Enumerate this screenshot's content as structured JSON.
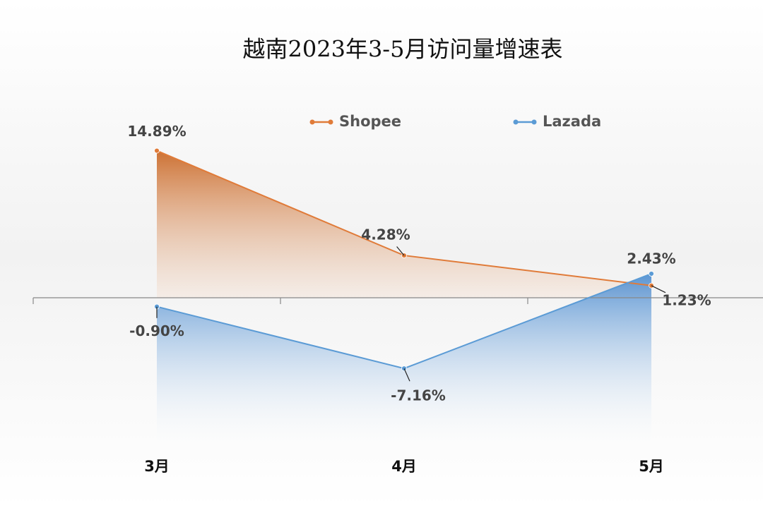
{
  "chart_data": {
    "type": "line",
    "title": "越南2023年3-5月访问量增速表",
    "categories": [
      "3月",
      "4月",
      "5月"
    ],
    "series": [
      {
        "name": "Shopee",
        "color": "#e07b39",
        "values": [
          14.89,
          4.28,
          1.23
        ],
        "value_labels": [
          "14.89%",
          "4.28%",
          "1.23%"
        ]
      },
      {
        "name": "Lazada",
        "color": "#5b9bd5",
        "values": [
          -0.9,
          -7.16,
          2.43
        ],
        "value_labels": [
          "-0.90%",
          "-7.16%",
          "2.43%"
        ]
      }
    ],
    "ylim": [
      -15,
      20
    ],
    "legend": "top"
  }
}
